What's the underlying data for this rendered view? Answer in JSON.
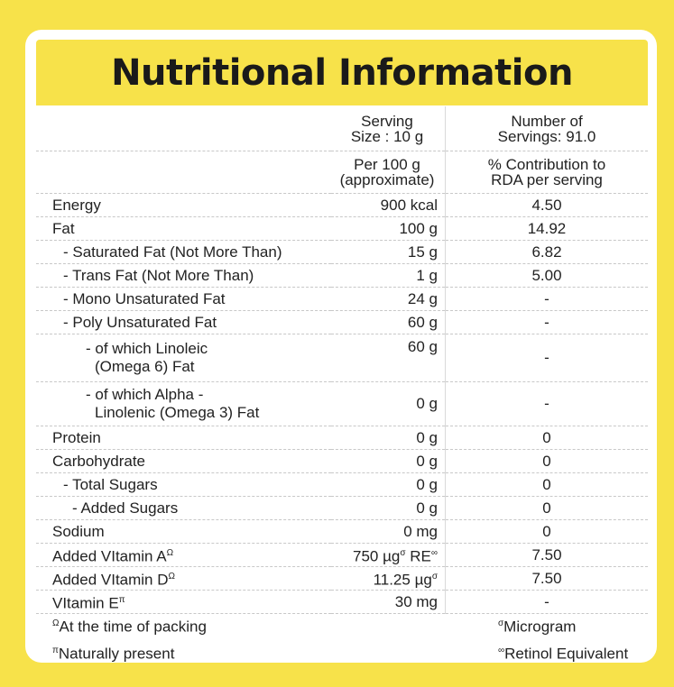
{
  "title": "Nutritional Information",
  "header": {
    "col2_line1": "Serving",
    "col2_line2": "Size : 10 g",
    "col3_line1": "Number of",
    "col3_line2": "Servings: 91.0",
    "sub_col2_line1": "Per 100 g",
    "sub_col2_line2": "(approximate)",
    "sub_col3_line1": "% Contribution to",
    "sub_col3_line2": "RDA per serving"
  },
  "rows": [
    {
      "label": "Energy",
      "per100": "900 kcal",
      "rda": "4.50"
    },
    {
      "label": "Fat",
      "per100": "100 g",
      "rda": "14.92"
    },
    {
      "label": "- Saturated Fat (Not More Than)",
      "per100": "15 g",
      "rda": "6.82"
    },
    {
      "label": "- Trans Fat (Not More Than)",
      "per100": "1 g",
      "rda": "5.00"
    },
    {
      "label": "- Mono Unsaturated Fat",
      "per100": "24 g",
      "rda": "-"
    },
    {
      "label": "- Poly Unsaturated Fat",
      "per100": "60 g",
      "rda": "-"
    },
    {
      "label_line1": "- of which Linoleic",
      "label_line2": "(Omega 6) Fat",
      "per100": "60 g",
      "rda": "-"
    },
    {
      "label_line1": "- of which Alpha -",
      "label_line2": "Linolenic (Omega 3) Fat",
      "per100": "0 g",
      "rda": "-"
    },
    {
      "label": "Protein",
      "per100": "0 g",
      "rda": "0"
    },
    {
      "label": "Carbohydrate",
      "per100": "0 g",
      "rda": "0"
    },
    {
      "label": "- Total Sugars",
      "per100": "0 g",
      "rda": "0"
    },
    {
      "label": "- Added Sugars",
      "per100": "0 g",
      "rda": "0"
    },
    {
      "label": "Sodium",
      "per100": "0 mg",
      "rda": "0"
    },
    {
      "label": "Added VItamin A",
      "label_sup": "Ω",
      "per100": "750 µg",
      "per100_sup": "σ",
      "per100_suffix": " RE",
      "per100_suffix_sup": "∞",
      "rda": "7.50"
    },
    {
      "label": "Added VItamin D",
      "label_sup": "Ω",
      "per100": "11.25 µg",
      "per100_sup": "σ",
      "rda": "7.50"
    },
    {
      "label": "VItamin E",
      "label_sup": "π",
      "per100": "30 mg",
      "rda": "-"
    }
  ],
  "footnotes": {
    "left1_sym": "Ω",
    "left1": "At the time of packing",
    "left2_sym": "π",
    "left2": "Naturally present",
    "right1_sym": "σ",
    "right1": "Microgram",
    "right2_sym": "∞",
    "right2": "Retinol Equivalent"
  }
}
